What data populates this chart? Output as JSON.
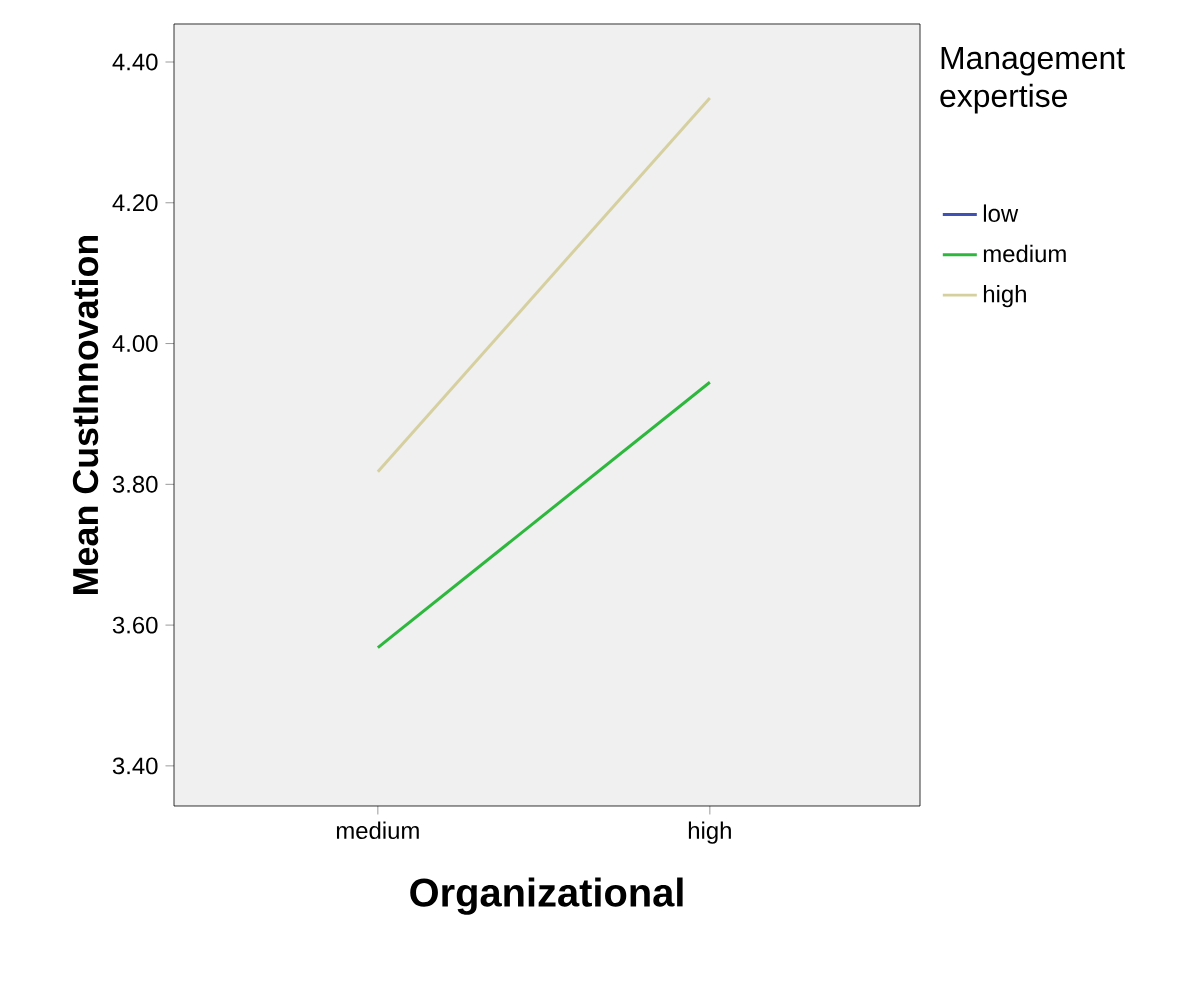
{
  "chart_data": {
    "type": "line",
    "xlabel": "Organizational",
    "ylabel": "Mean CustInnovation",
    "legend_title": "Management expertise",
    "categories": [
      "medium",
      "high"
    ],
    "series": [
      {
        "name": "low",
        "color": "#3f51b5",
        "values": [
          null,
          null
        ]
      },
      {
        "name": "medium",
        "color": "#2db83d",
        "values": [
          3.568,
          3.945
        ]
      },
      {
        "name": "high",
        "color": "#d6d0a0",
        "values": [
          3.818,
          4.349
        ]
      }
    ],
    "ylim": [
      3.343,
      4.454
    ],
    "yticks": [
      {
        "value": 3.4,
        "label": "3.40"
      },
      {
        "value": 3.6,
        "label": "3.60"
      },
      {
        "value": 3.8,
        "label": "3.80"
      },
      {
        "value": 4.0,
        "label": "4.00"
      },
      {
        "value": 4.2,
        "label": "4.20"
      },
      {
        "value": 4.4,
        "label": "4.40"
      }
    ],
    "legend": "right",
    "grid": false,
    "marker": "none",
    "line_style": "solid"
  }
}
